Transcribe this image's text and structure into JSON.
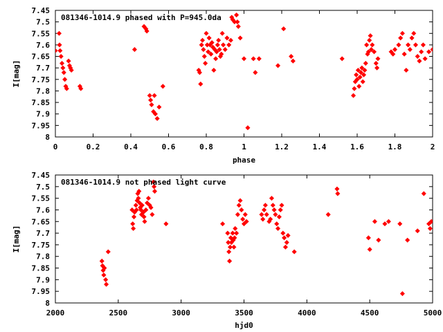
{
  "chart_data": [
    {
      "type": "scatter",
      "title": "081346-1014.9 phased with P=945.0da",
      "xlabel": "phase",
      "ylabel": "I[mag]",
      "xlim": [
        0,
        2
      ],
      "ylim": [
        8,
        7.45
      ],
      "y_inverted": true,
      "x_ticks": [
        0,
        0.2,
        0.4,
        0.6,
        0.8,
        1,
        1.2,
        1.4,
        1.6,
        1.8,
        2
      ],
      "x_tick_labels": [
        "0",
        "0.2",
        "0.4",
        "0.6",
        "0.8",
        "1",
        "1.2",
        "1.4",
        "1.6",
        "1.8",
        "2"
      ],
      "y_ticks": [
        7.45,
        7.5,
        7.55,
        7.6,
        7.65,
        7.7,
        7.75,
        7.8,
        7.85,
        7.9,
        7.95,
        8
      ],
      "y_tick_labels": [
        "7.45",
        "7.5",
        "7.55",
        "7.6",
        "7.65",
        "7.7",
        "7.75",
        "7.8",
        "7.85",
        "7.9",
        "7.95",
        "8"
      ],
      "marker_color": "#ff0000",
      "series": [
        {
          "points": [
            [
              0.0,
              7.625
            ],
            [
              0.02,
              7.55
            ],
            [
              0.022,
              7.6
            ],
            [
              0.025,
              7.625
            ],
            [
              0.03,
              7.65
            ],
            [
              0.035,
              7.68
            ],
            [
              0.04,
              7.7
            ],
            [
              0.045,
              7.72
            ],
            [
              0.05,
              7.75
            ],
            [
              0.055,
              7.78
            ],
            [
              0.06,
              7.79
            ],
            [
              0.07,
              7.67
            ],
            [
              0.075,
              7.69
            ],
            [
              0.08,
              7.7
            ],
            [
              0.085,
              7.71
            ],
            [
              0.13,
              7.78
            ],
            [
              0.135,
              7.79
            ],
            [
              0.42,
              7.62
            ],
            [
              0.47,
              7.52
            ],
            [
              0.48,
              7.53
            ],
            [
              0.485,
              7.54
            ],
            [
              0.5,
              7.82
            ],
            [
              0.505,
              7.84
            ],
            [
              0.51,
              7.86
            ],
            [
              0.52,
              7.89
            ],
            [
              0.525,
              7.82
            ],
            [
              0.53,
              7.9
            ],
            [
              0.54,
              7.92
            ],
            [
              0.55,
              7.87
            ],
            [
              0.57,
              7.78
            ],
            [
              0.76,
              7.71
            ],
            [
              0.765,
              7.72
            ],
            [
              0.77,
              7.77
            ],
            [
              0.775,
              7.6
            ],
            [
              0.78,
              7.58
            ],
            [
              0.785,
              7.62
            ],
            [
              0.79,
              7.65
            ],
            [
              0.795,
              7.68
            ],
            [
              0.8,
              7.55
            ],
            [
              0.805,
              7.6
            ],
            [
              0.81,
              7.63
            ],
            [
              0.815,
              7.57
            ],
            [
              0.82,
              7.6
            ],
            [
              0.825,
              7.64
            ],
            [
              0.83,
              7.59
            ],
            [
              0.835,
              7.61
            ],
            [
              0.84,
              7.71
            ],
            [
              0.845,
              7.62
            ],
            [
              0.85,
              7.66
            ],
            [
              0.855,
              7.63
            ],
            [
              0.86,
              7.6
            ],
            [
              0.865,
              7.58
            ],
            [
              0.87,
              7.62
            ],
            [
              0.875,
              7.65
            ],
            [
              0.88,
              7.64
            ],
            [
              0.885,
              7.55
            ],
            [
              0.89,
              7.6
            ],
            [
              0.9,
              7.62
            ],
            [
              0.91,
              7.57
            ],
            [
              0.92,
              7.6
            ],
            [
              0.93,
              7.58
            ],
            [
              0.935,
              7.48
            ],
            [
              0.94,
              7.49
            ],
            [
              0.95,
              7.5
            ],
            [
              0.96,
              7.47
            ],
            [
              0.965,
              7.5
            ],
            [
              0.97,
              7.52
            ],
            [
              0.98,
              7.57
            ],
            [
              1.0,
              7.66
            ],
            [
              1.02,
              7.96
            ],
            [
              1.05,
              7.66
            ],
            [
              1.06,
              7.72
            ],
            [
              1.08,
              7.66
            ],
            [
              1.18,
              7.69
            ],
            [
              1.21,
              7.53
            ],
            [
              1.25,
              7.65
            ],
            [
              1.26,
              7.67
            ],
            [
              1.52,
              7.66
            ],
            [
              1.58,
              7.82
            ],
            [
              1.585,
              7.79
            ],
            [
              1.59,
              7.76
            ],
            [
              1.595,
              7.73
            ],
            [
              1.6,
              7.75
            ],
            [
              1.605,
              7.71
            ],
            [
              1.61,
              7.78
            ],
            [
              1.615,
              7.74
            ],
            [
              1.62,
              7.72
            ],
            [
              1.625,
              7.7
            ],
            [
              1.63,
              7.76
            ],
            [
              1.635,
              7.73
            ],
            [
              1.64,
              7.71
            ],
            [
              1.645,
              7.68
            ],
            [
              1.65,
              7.6
            ],
            [
              1.655,
              7.64
            ],
            [
              1.66,
              7.63
            ],
            [
              1.665,
              7.58
            ],
            [
              1.67,
              7.56
            ],
            [
              1.675,
              7.62
            ],
            [
              1.68,
              7.6
            ],
            [
              1.69,
              7.63
            ],
            [
              1.7,
              7.68
            ],
            [
              1.705,
              7.7
            ],
            [
              1.71,
              7.66
            ],
            [
              1.78,
              7.63
            ],
            [
              1.79,
              7.64
            ],
            [
              1.8,
              7.62
            ],
            [
              1.82,
              7.6
            ],
            [
              1.83,
              7.57
            ],
            [
              1.84,
              7.55
            ],
            [
              1.85,
              7.64
            ],
            [
              1.86,
              7.71
            ],
            [
              1.87,
              7.6
            ],
            [
              1.88,
              7.62
            ],
            [
              1.89,
              7.57
            ],
            [
              1.9,
              7.55
            ],
            [
              1.91,
              7.6
            ],
            [
              1.92,
              7.65
            ],
            [
              1.93,
              7.67
            ],
            [
              1.94,
              7.63
            ],
            [
              1.95,
              7.6
            ],
            [
              1.96,
              7.66
            ],
            [
              1.98,
              7.63
            ],
            [
              2.0,
              7.62
            ]
          ]
        }
      ]
    },
    {
      "type": "scatter",
      "title": "081346-1014.9 not phased light curve",
      "xlabel": "hjd0",
      "ylabel": "I[mag]",
      "xlim": [
        2000,
        5000
      ],
      "ylim": [
        8,
        7.45
      ],
      "y_inverted": true,
      "x_ticks": [
        2000,
        2500,
        3000,
        3500,
        4000,
        4500,
        5000
      ],
      "x_tick_labels": [
        "2000",
        "2500",
        "3000",
        "3500",
        "4000",
        "4500",
        "5000"
      ],
      "y_ticks": [
        7.45,
        7.5,
        7.55,
        7.6,
        7.65,
        7.7,
        7.75,
        7.8,
        7.85,
        7.9,
        7.95,
        8
      ],
      "y_tick_labels": [
        "7.45",
        "7.5",
        "7.55",
        "7.6",
        "7.65",
        "7.7",
        "7.75",
        "7.8",
        "7.85",
        "7.9",
        "7.95",
        "8"
      ],
      "marker_color": "#ff0000",
      "series": [
        {
          "points": [
            [
              2370,
              7.82
            ],
            [
              2375,
              7.84
            ],
            [
              2380,
              7.86
            ],
            [
              2385,
              7.88
            ],
            [
              2390,
              7.85
            ],
            [
              2400,
              7.9
            ],
            [
              2405,
              7.92
            ],
            [
              2420,
              7.78
            ],
            [
              2610,
              7.6
            ],
            [
              2615,
              7.66
            ],
            [
              2620,
              7.68
            ],
            [
              2625,
              7.63
            ],
            [
              2630,
              7.61
            ],
            [
              2640,
              7.58
            ],
            [
              2645,
              7.6
            ],
            [
              2650,
              7.56
            ],
            [
              2655,
              7.53
            ],
            [
              2660,
              7.55
            ],
            [
              2665,
              7.52
            ],
            [
              2670,
              7.57
            ],
            [
              2675,
              7.59
            ],
            [
              2680,
              7.6
            ],
            [
              2685,
              7.62
            ],
            [
              2690,
              7.58
            ],
            [
              2700,
              7.61
            ],
            [
              2705,
              7.63
            ],
            [
              2710,
              7.65
            ],
            [
              2720,
              7.6
            ],
            [
              2730,
              7.57
            ],
            [
              2740,
              7.55
            ],
            [
              2750,
              7.58
            ],
            [
              2760,
              7.59
            ],
            [
              2770,
              7.62
            ],
            [
              2780,
              7.48
            ],
            [
              2785,
              7.5
            ],
            [
              2790,
              7.52
            ],
            [
              2880,
              7.66
            ],
            [
              3330,
              7.66
            ],
            [
              3370,
              7.7
            ],
            [
              3375,
              7.74
            ],
            [
              3380,
              7.78
            ],
            [
              3385,
              7.82
            ],
            [
              3390,
              7.76
            ],
            [
              3395,
              7.72
            ],
            [
              3400,
              7.74
            ],
            [
              3410,
              7.7
            ],
            [
              3415,
              7.73
            ],
            [
              3420,
              7.76
            ],
            [
              3425,
              7.72
            ],
            [
              3430,
              7.68
            ],
            [
              3440,
              7.7
            ],
            [
              3450,
              7.62
            ],
            [
              3460,
              7.58
            ],
            [
              3470,
              7.56
            ],
            [
              3480,
              7.6
            ],
            [
              3490,
              7.64
            ],
            [
              3500,
              7.66
            ],
            [
              3510,
              7.62
            ],
            [
              3520,
              7.65
            ],
            [
              3640,
              7.62
            ],
            [
              3650,
              7.64
            ],
            [
              3660,
              7.6
            ],
            [
              3670,
              7.58
            ],
            [
              3680,
              7.62
            ],
            [
              3700,
              7.65
            ],
            [
              3710,
              7.64
            ],
            [
              3720,
              7.55
            ],
            [
              3730,
              7.58
            ],
            [
              3740,
              7.6
            ],
            [
              3750,
              7.62
            ],
            [
              3760,
              7.66
            ],
            [
              3770,
              7.68
            ],
            [
              3780,
              7.63
            ],
            [
              3790,
              7.6
            ],
            [
              3800,
              7.58
            ],
            [
              3810,
              7.7
            ],
            [
              3820,
              7.72
            ],
            [
              3830,
              7.76
            ],
            [
              3840,
              7.74
            ],
            [
              3850,
              7.71
            ],
            [
              3900,
              7.78
            ],
            [
              4170,
              7.62
            ],
            [
              4240,
              7.51
            ],
            [
              4245,
              7.53
            ],
            [
              4490,
              7.72
            ],
            [
              4500,
              7.77
            ],
            [
              4540,
              7.65
            ],
            [
              4570,
              7.73
            ],
            [
              4620,
              7.66
            ],
            [
              4650,
              7.65
            ],
            [
              4740,
              7.66
            ],
            [
              4760,
              7.96
            ],
            [
              4800,
              7.73
            ],
            [
              4880,
              7.69
            ],
            [
              4930,
              7.53
            ],
            [
              4970,
              7.66
            ],
            [
              4980,
              7.68
            ],
            [
              4990,
              7.65
            ]
          ]
        }
      ]
    }
  ]
}
